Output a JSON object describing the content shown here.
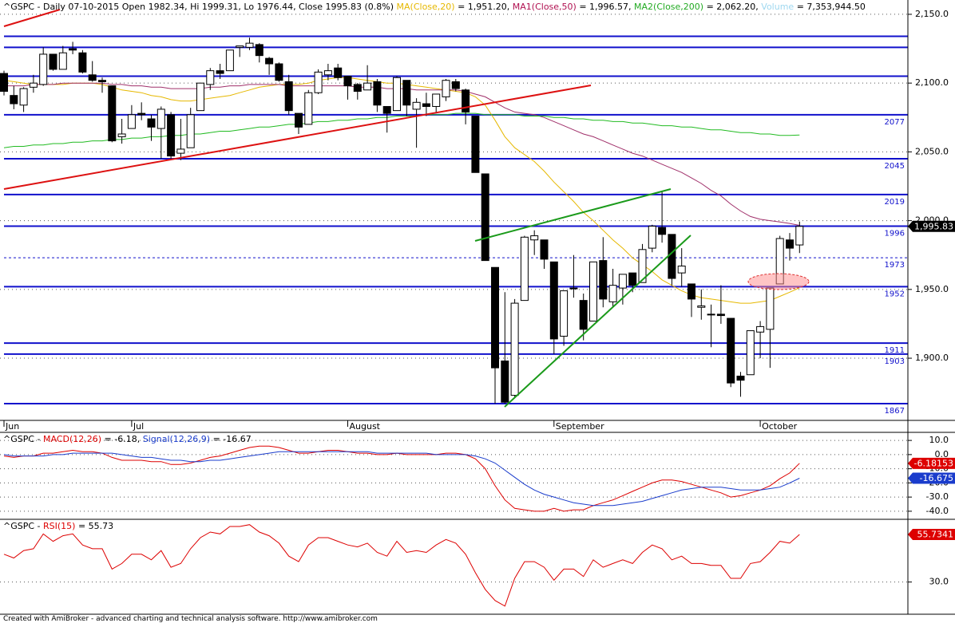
{
  "chart_data": [
    {
      "type": "candlestick",
      "header": [
        {
          "text": "^GSPC - Daily 07-10-2015 Open 1982.34, Hi 1999.31, Lo 1976.44, Close 1995.83 (0.8%) ",
          "color": "#000000"
        },
        {
          "text": "MA(Close,20)",
          "color": "#e6b800"
        },
        {
          "text": " = 1,951.20, ",
          "color": "#000000"
        },
        {
          "text": "MA1(Close,50)",
          "color": "#b01050"
        },
        {
          "text": " = 1,996.57, ",
          "color": "#000000"
        },
        {
          "text": "MA2(Close,200)",
          "color": "#22aa22"
        },
        {
          "text": " = 2,062.20, ",
          "color": "#000000"
        },
        {
          "text": "Volume",
          "color": "#9fd8f0"
        },
        {
          "text": " = 7,353,944.50",
          "color": "#000000"
        }
      ],
      "categories": [
        "Jun",
        null,
        null,
        null,
        null,
        null,
        null,
        null,
        null,
        null,
        null,
        null,
        null,
        "Jul",
        null,
        null,
        null,
        null,
        null,
        null,
        null,
        null,
        null,
        null,
        null,
        null,
        null,
        null,
        null,
        null,
        null,
        null,
        null,
        null,
        null,
        "August",
        null,
        null,
        null,
        null,
        null,
        null,
        null,
        null,
        null,
        null,
        null,
        null,
        null,
        null,
        null,
        null,
        null,
        null,
        null,
        null,
        "September",
        null,
        null,
        null,
        null,
        null,
        null,
        null,
        null,
        null,
        null,
        null,
        null,
        null,
        null,
        null,
        null,
        null,
        null,
        null,
        null,
        "October",
        null,
        null,
        null,
        null
      ],
      "open": [
        2107,
        2091,
        2084,
        2097,
        2099,
        2121,
        2110,
        2125,
        2122,
        2106,
        2102,
        2098,
        2061,
        2067,
        2078,
        2074,
        2067,
        2077,
        2049,
        2053,
        2080,
        2099,
        2109,
        2109,
        2126,
        2126,
        2128,
        2118,
        2114,
        2101,
        2078,
        2070,
        2093,
        2106,
        2111,
        2105,
        2099,
        2095,
        2101,
        2083,
        2080,
        2102,
        2081,
        2085,
        2083,
        2090,
        2101,
        2095,
        2076,
        2034,
        1966,
        1898,
        1873,
        1942,
        1986,
        1986,
        1970,
        1916,
        1951,
        1942,
        1927,
        1971,
        1941,
        1951,
        1962,
        1955,
        1980,
        1995,
        1990,
        1962,
        1954,
        1937,
        1932,
        1932,
        1929,
        1887,
        1888,
        1919,
        1921,
        1954,
        1986,
        1982.34
      ],
      "high": [
        2109,
        2098,
        2097,
        2106,
        2126,
        2121,
        2127,
        2130,
        2124,
        2116,
        2104,
        2098,
        2074,
        2084,
        2086,
        2077,
        2083,
        2079,
        2074,
        2082,
        2100,
        2111,
        2114,
        2124,
        2127,
        2133,
        2129,
        2119,
        2115,
        2106,
        2078,
        2095,
        2110,
        2114,
        2114,
        2105,
        2100,
        2113,
        2103,
        2083,
        2105,
        2102,
        2089,
        2093,
        2092,
        2103,
        2103,
        2096,
        2076,
        2034,
        1966,
        1948,
        1943,
        1989,
        1993,
        1986,
        1970,
        1949,
        1975,
        1947,
        1970,
        1988,
        1965,
        1961,
        1962,
        1983,
        1997,
        2021,
        1990,
        1980,
        1954,
        1950,
        1939,
        1953,
        1929,
        1890,
        1920,
        1927,
        1951,
        1989,
        1991,
        1999.31
      ],
      "low": [
        2091,
        2081,
        2079,
        2093,
        2098,
        2109,
        2110,
        2121,
        2107,
        2101,
        2093,
        2057,
        2056,
        2067,
        2073,
        2058,
        2045,
        2045,
        2044,
        2053,
        2080,
        2095,
        2103,
        2109,
        2119,
        2124,
        2115,
        2106,
        2101,
        2077,
        2063,
        2070,
        2092,
        2102,
        2102,
        2088,
        2088,
        2095,
        2079,
        2064,
        2080,
        2076,
        2053,
        2076,
        2078,
        2087,
        2094,
        2070,
        2035,
        1971,
        1867,
        1867,
        1872,
        1942,
        1975,
        1965,
        1903,
        1909,
        1944,
        1913,
        1927,
        1937,
        1937,
        1939,
        1948,
        1955,
        1977,
        1984,
        1953,
        1952,
        1930,
        1928,
        1908,
        1925,
        1879,
        1872,
        1888,
        1900,
        1893,
        1954,
        1971,
        1976.44
      ],
      "close": [
        2094,
        2085,
        2096,
        2100,
        2121,
        2110,
        2122,
        2124,
        2108,
        2102,
        2101,
        2058,
        2063,
        2077,
        2077,
        2068,
        2081,
        2047,
        2052,
        2077,
        2100,
        2109,
        2107,
        2124,
        2127,
        2129,
        2120,
        2114,
        2102,
        2080,
        2068,
        2093,
        2108,
        2109,
        2104,
        2098,
        2094,
        2100,
        2084,
        2078,
        2104,
        2084,
        2086,
        2083,
        2092,
        2102,
        2096,
        2079,
        2035,
        1971,
        1893,
        1868,
        1940,
        1988,
        1989,
        1972,
        1914,
        1949,
        1951,
        1921,
        1970,
        1943,
        1953,
        1961,
        1953,
        1979,
        1996,
        1990,
        1958,
        1967,
        1943,
        1938,
        1932,
        1931,
        1882,
        1884,
        1920,
        1923,
        1951,
        1987,
        1980,
        1995.83
      ],
      "close_label": "1,995.83",
      "series": [
        {
          "color": "#e6b800",
          "values": [
            2102,
            2101,
            2100,
            2099,
            2099,
            2099,
            2099,
            2100,
            2100,
            2100,
            2099,
            2097,
            2095,
            2094,
            2093,
            2091,
            2090,
            2088,
            2087,
            2087,
            2088,
            2089,
            2090,
            2091,
            2093,
            2095,
            2097,
            2098,
            2099,
            2099,
            2099,
            2100,
            2102,
            2103,
            2104,
            2104,
            2103,
            2102,
            2101,
            2100,
            2100,
            2099,
            2098,
            2097,
            2096,
            2095,
            2094,
            2093,
            2090,
            2084,
            2073,
            2061,
            2053,
            2048,
            2043,
            2036,
            2028,
            2021,
            2014,
            2006,
            2000,
            1993,
            1986,
            1980,
            1973,
            1968,
            1963,
            1957,
            1953,
            1949,
            1946,
            1944,
            1943,
            1942,
            1941,
            1940,
            1940,
            1941,
            1942,
            1945,
            1948,
            1951.2
          ]
        },
        {
          "color": "#a0306a",
          "values": [
            2098,
            2098,
            2098,
            2099,
            2099,
            2099,
            2100,
            2100,
            2100,
            2100,
            2100,
            2099,
            2099,
            2098,
            2098,
            2097,
            2097,
            2096,
            2096,
            2096,
            2096,
            2097,
            2097,
            2098,
            2098,
            2099,
            2099,
            2099,
            2099,
            2098,
            2098,
            2098,
            2098,
            2098,
            2098,
            2098,
            2097,
            2097,
            2097,
            2096,
            2096,
            2096,
            2095,
            2095,
            2095,
            2095,
            2095,
            2094,
            2092,
            2090,
            2086,
            2082,
            2079,
            2078,
            2077,
            2075,
            2072,
            2069,
            2066,
            2063,
            2061,
            2058,
            2055,
            2052,
            2049,
            2047,
            2044,
            2041,
            2038,
            2035,
            2031,
            2027,
            2022,
            2018,
            2012,
            2007,
            2003,
            2001,
            2000,
            1999,
            1998,
            1996.57
          ]
        },
        {
          "color": "#22bb22",
          "values": [
            2053,
            2054,
            2054,
            2055,
            2055,
            2056,
            2056,
            2057,
            2057,
            2058,
            2058,
            2059,
            2059,
            2060,
            2060,
            2061,
            2061,
            2062,
            2062,
            2063,
            2063,
            2064,
            2065,
            2065,
            2066,
            2067,
            2068,
            2068,
            2069,
            2070,
            2070,
            2071,
            2072,
            2072,
            2073,
            2073,
            2074,
            2074,
            2075,
            2075,
            2076,
            2076,
            2076,
            2077,
            2077,
            2077,
            2078,
            2078,
            2078,
            2077,
            2077,
            2077,
            2077,
            2076,
            2076,
            2076,
            2075,
            2075,
            2074,
            2074,
            2073,
            2073,
            2072,
            2072,
            2071,
            2071,
            2070,
            2069,
            2069,
            2068,
            2068,
            2067,
            2066,
            2066,
            2065,
            2064,
            2064,
            2063,
            2063,
            2062,
            2062,
            2062.2
          ]
        }
      ],
      "lines": [
        2134,
        2126,
        2105
      ],
      "levels": [
        2077,
        2045,
        2019,
        1996,
        1973,
        1952,
        1911,
        1903,
        1867
      ],
      "level_styles": [
        "solid",
        "solid",
        "solid",
        "solid",
        "dotted",
        "solid",
        "solid",
        "solid",
        "solid"
      ],
      "ylim": [
        1854.8,
        2160.4
      ],
      "yticks": [
        {
          "value": 2150,
          "label": "2,150.0"
        },
        {
          "value": 2100,
          "label": "2,100.0"
        },
        {
          "value": 2050,
          "label": "2,050.0"
        },
        {
          "value": 2000,
          "label": "2,000.0"
        },
        {
          "value": 1950,
          "label": "1,950.0"
        },
        {
          "value": 1900,
          "label": "1,900.0"
        }
      ],
      "grid": true
    },
    {
      "type": "line",
      "header": [
        {
          "text": "^GSPC - ",
          "color": "#000000"
        },
        {
          "text": "MACD(12,26)",
          "color": "#dd0000"
        },
        {
          "text": " = -6.18, ",
          "color": "#000000"
        },
        {
          "text": "Signal(12,26,9)",
          "color": "#1a3ccc"
        },
        {
          "text": " = -16.67",
          "color": "#000000"
        }
      ],
      "series": [
        {
          "color": "#dd0000",
          "last_label": "-6.18153",
          "values": [
            -1,
            -2,
            -1,
            -1,
            1,
            1,
            2,
            3,
            2,
            2,
            1,
            -2,
            -4,
            -4,
            -4,
            -5,
            -5,
            -7,
            -7,
            -6,
            -4,
            -2,
            -1,
            1,
            3,
            5,
            6,
            6,
            5,
            3,
            1,
            1,
            2,
            3,
            3,
            2,
            1,
            1,
            0,
            0,
            1,
            0,
            0,
            0,
            0,
            1,
            1,
            0,
            -3,
            -10,
            -22,
            -32,
            -38,
            -39,
            -40,
            -40,
            -38,
            -40,
            -39,
            -39,
            -36,
            -34,
            -32,
            -29,
            -26,
            -23,
            -20,
            -18,
            -18,
            -19,
            -21,
            -23,
            -25,
            -27,
            -30,
            -29,
            -27,
            -25,
            -22,
            -17,
            -13,
            -6.18
          ]
        },
        {
          "color": "#1a3ccc",
          "last_label": "-16.675",
          "values": [
            0,
            -1,
            -1,
            -1,
            -1,
            0,
            0,
            1,
            1,
            1,
            1,
            1,
            0,
            -1,
            -2,
            -2,
            -3,
            -4,
            -4,
            -5,
            -5,
            -4,
            -4,
            -3,
            -2,
            -1,
            0,
            1,
            2,
            2,
            2,
            2,
            2,
            2,
            2,
            2,
            2,
            2,
            1,
            1,
            1,
            1,
            1,
            1,
            0,
            0,
            0,
            0,
            -1,
            -3,
            -6,
            -11,
            -16,
            -21,
            -25,
            -28,
            -30,
            -32,
            -34,
            -35,
            -36,
            -36,
            -36,
            -35,
            -34,
            -33,
            -31,
            -29,
            -27,
            -25,
            -24,
            -23,
            -23,
            -23,
            -24,
            -25,
            -25,
            -25,
            -24,
            -23,
            -20,
            -16.67
          ]
        }
      ],
      "ylim": [
        -45.7,
        15.7
      ],
      "yticks": [
        {
          "value": 10,
          "label": "10.0"
        },
        {
          "value": 0,
          "label": "0.0"
        },
        {
          "value": -10,
          "label": "-10.0"
        },
        {
          "value": -20,
          "label": "-20.0"
        },
        {
          "value": -30,
          "label": "-30.0"
        },
        {
          "value": -40,
          "label": "-40.0"
        }
      ],
      "grid": true
    },
    {
      "type": "line",
      "header": [
        {
          "text": "^GSPC - ",
          "color": "#000000"
        },
        {
          "text": "RSI(15)",
          "color": "#dd0000"
        },
        {
          "text": " = 55.73",
          "color": "#000000"
        }
      ],
      "series": [
        {
          "color": "#dd0000",
          "last_label": "55.7341",
          "values": [
            45,
            43,
            47,
            48,
            56,
            52,
            55,
            56,
            50,
            48,
            48,
            37,
            40,
            45,
            45,
            42,
            47,
            38,
            40,
            48,
            54,
            57,
            56,
            60,
            60,
            61,
            57,
            55,
            51,
            44,
            41,
            50,
            54,
            54,
            52,
            50,
            49,
            51,
            46,
            44,
            52,
            46,
            47,
            46,
            50,
            53,
            51,
            45,
            35,
            26,
            20,
            17,
            32,
            41,
            41,
            38,
            31,
            37,
            37,
            33,
            42,
            38,
            40,
            42,
            40,
            46,
            50,
            48,
            42,
            44,
            40,
            40,
            39,
            39,
            32,
            32,
            40,
            41,
            46,
            52,
            51,
            55.73
          ]
        }
      ],
      "ylim": [
        12.6,
        63.9
      ],
      "yticks": [
        {
          "value": 30,
          "label": "30.0"
        }
      ],
      "grid": true
    }
  ],
  "footer": "Created with AmiBroker - advanced charting and technical analysis software. http://www.amibroker.com"
}
